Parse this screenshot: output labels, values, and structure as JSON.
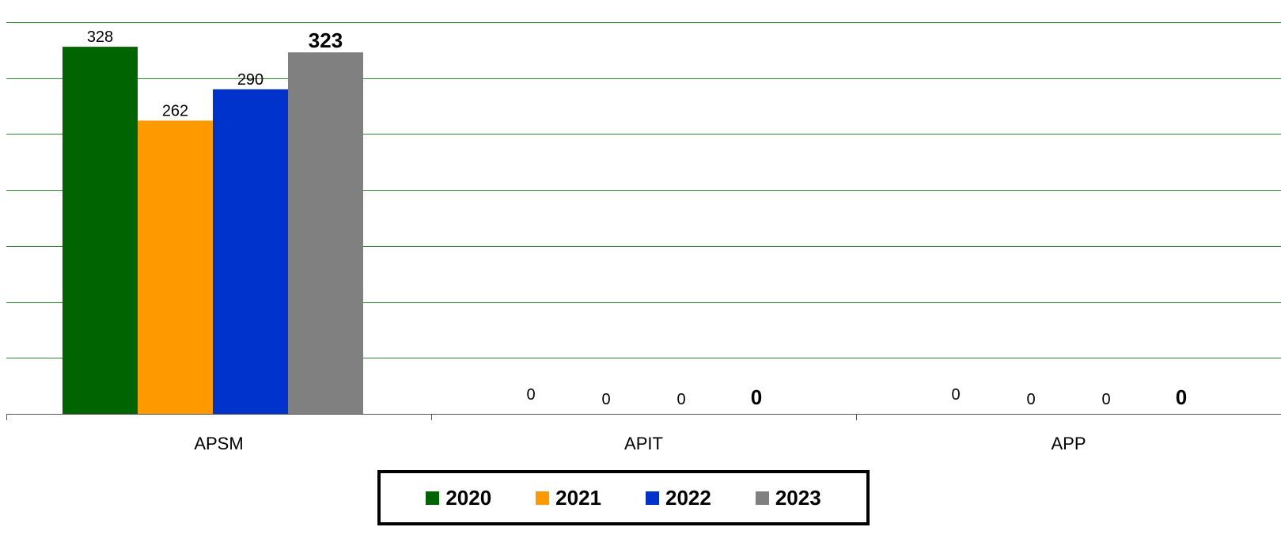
{
  "chart_data": {
    "type": "bar",
    "categories": [
      "APSM",
      "APIT",
      "APP"
    ],
    "series": [
      {
        "name": "2020",
        "color": "#006400",
        "values": [
          328,
          0,
          0
        ]
      },
      {
        "name": "2021",
        "color": "#FF9900",
        "values": [
          262,
          0,
          0
        ]
      },
      {
        "name": "2022",
        "color": "#0033CC",
        "values": [
          290,
          0,
          0
        ]
      },
      {
        "name": "2023",
        "color": "#808080",
        "values": [
          323,
          0,
          0
        ]
      }
    ],
    "ylim": [
      0,
      350
    ],
    "gridlines": true,
    "gridline_color": "#2E8B2E",
    "legend_placement": "bottom",
    "title": "",
    "xlabel": "",
    "ylabel": ""
  }
}
